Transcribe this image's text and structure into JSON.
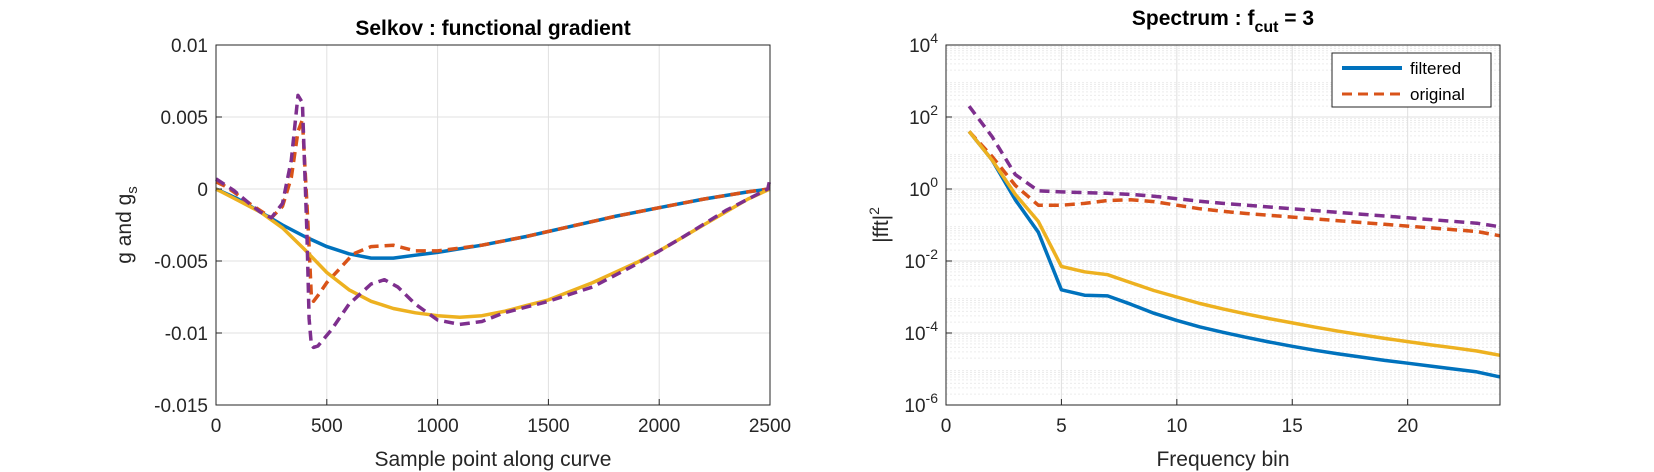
{
  "figure": {
    "colors": {
      "blue": "#0072BD",
      "orange": "#D95319",
      "yellow": "#EDB120",
      "purple": "#7E2F8E",
      "axis": "#262626",
      "grid": "#e0e0e0"
    }
  },
  "chart_data": [
    {
      "type": "line",
      "title": "Selkov : functional gradient",
      "xlabel": "Sample point along curve",
      "ylabel": "g and g",
      "ylabel_subscript": "s",
      "xlim": [
        0,
        2500
      ],
      "ylim": [
        -0.015,
        0.01
      ],
      "xticks": [
        0,
        500,
        1000,
        1500,
        2000,
        2500
      ],
      "xtick_labels": [
        "0",
        "500",
        "1000",
        "1500",
        "2000",
        "2500"
      ],
      "yticks": [
        0.01,
        0.005,
        0,
        -0.005,
        -0.01,
        -0.015
      ],
      "ytick_labels": [
        "0.01",
        "0.005",
        "0",
        "-0.005",
        "-0.01",
        "-0.015"
      ],
      "grid": true,
      "series": [
        {
          "color": "blue",
          "style": "solid",
          "x": [
            0,
            100,
            200,
            300,
            400,
            500,
            600,
            700,
            800,
            900,
            1000,
            1200,
            1400,
            1600,
            1800,
            2000,
            2200,
            2400,
            2500
          ],
          "y": [
            0,
            -0.0007,
            -0.0016,
            -0.0025,
            -0.0033,
            -0.004,
            -0.0045,
            -0.0048,
            -0.0048,
            -0.0046,
            -0.0044,
            -0.0039,
            -0.0033,
            -0.0026,
            -0.0019,
            -0.0013,
            -0.0007,
            -0.0002,
            0
          ]
        },
        {
          "color": "orange",
          "style": "dashed",
          "x": [
            0,
            40,
            80,
            150,
            200,
            250,
            300,
            340,
            370,
            390,
            410,
            420,
            430,
            440,
            460,
            500,
            560,
            620,
            700,
            800,
            900,
            1000,
            1200,
            1400,
            1600,
            1800,
            2000,
            2200,
            2400,
            2490,
            2500
          ],
          "y": [
            0.0005,
            0.0002,
            -0.0002,
            -0.001,
            -0.0015,
            -0.002,
            -0.0012,
            0.0008,
            0.004,
            0.0048,
            -0.001,
            -0.004,
            -0.0074,
            -0.0078,
            -0.0074,
            -0.0065,
            -0.0055,
            -0.0045,
            -0.004,
            -0.0039,
            -0.0043,
            -0.0043,
            -0.0039,
            -0.0033,
            -0.0026,
            -0.0019,
            -0.0013,
            -0.0007,
            -0.0002,
            0,
            0.0005
          ]
        },
        {
          "color": "yellow",
          "style": "solid",
          "x": [
            0,
            100,
            200,
            300,
            400,
            500,
            600,
            700,
            800,
            900,
            1000,
            1100,
            1200,
            1300,
            1400,
            1500,
            1600,
            1700,
            1800,
            1900,
            2000,
            2100,
            2200,
            2300,
            2400,
            2500
          ],
          "y": [
            0,
            -0.0008,
            -0.0016,
            -0.0027,
            -0.0042,
            -0.0058,
            -0.007,
            -0.0078,
            -0.0083,
            -0.0086,
            -0.0088,
            -0.0089,
            -0.0088,
            -0.0085,
            -0.0081,
            -0.0077,
            -0.0071,
            -0.0065,
            -0.0058,
            -0.0051,
            -0.0043,
            -0.0034,
            -0.0025,
            -0.0016,
            -0.0007,
            0
          ]
        },
        {
          "color": "purple",
          "style": "dashed",
          "x": [
            0,
            40,
            80,
            150,
            200,
            250,
            300,
            340,
            370,
            390,
            410,
            420,
            430,
            440,
            460,
            520,
            600,
            700,
            760,
            820,
            900,
            1000,
            1100,
            1200,
            1300,
            1400,
            1500,
            1700,
            1900,
            2100,
            2300,
            2490,
            2500
          ],
          "y": [
            0.0007,
            0.0003,
            -0.0001,
            -0.001,
            -0.0016,
            -0.002,
            -0.001,
            0.002,
            0.0065,
            0.006,
            -0.003,
            -0.009,
            -0.0108,
            -0.011,
            -0.0109,
            -0.0098,
            -0.008,
            -0.0066,
            -0.0063,
            -0.0068,
            -0.008,
            -0.0091,
            -0.0094,
            -0.0092,
            -0.0086,
            -0.0082,
            -0.0078,
            -0.0068,
            -0.0052,
            -0.0034,
            -0.0015,
            0,
            0.0007
          ]
        }
      ]
    },
    {
      "type": "line",
      "title": "Spectrum : f",
      "title_subscript": "cut",
      "title_suffix": " = 3",
      "xlabel": "Frequency bin",
      "ylabel": "|fft|",
      "ylabel_superscript": "2",
      "xlim": [
        0,
        24
      ],
      "ylim_log10": [
        -6,
        4
      ],
      "yscale": "log",
      "xticks": [
        0,
        5,
        10,
        15,
        20
      ],
      "xtick_labels": [
        "0",
        "5",
        "10",
        "15",
        "20"
      ],
      "yticks_log10": [
        4,
        2,
        0,
        -2,
        -4,
        -6
      ],
      "ytick_base": "10",
      "ytick_exponents": [
        "4",
        "2",
        "0",
        "-2",
        "-4",
        "-6"
      ],
      "grid": true,
      "legend": {
        "position": "top-right",
        "labels": [
          "filtered",
          "original"
        ]
      },
      "series": [
        {
          "name": "filtered",
          "color": "blue",
          "style": "solid",
          "x": [
            1,
            2,
            3,
            4,
            5,
            6,
            7,
            8,
            9,
            10,
            11,
            12,
            13,
            14,
            15,
            16,
            17,
            18,
            19,
            20,
            21,
            22,
            23,
            24
          ],
          "y_log10": [
            1.6,
            0.8,
            -0.3,
            -1.2,
            -2.8,
            -2.95,
            -2.97,
            -3.2,
            -3.45,
            -3.65,
            -3.83,
            -3.98,
            -4.12,
            -4.25,
            -4.37,
            -4.48,
            -4.58,
            -4.67,
            -4.76,
            -4.84,
            -4.92,
            -5.0,
            -5.08,
            -5.22
          ]
        },
        {
          "name": "original",
          "color": "orange",
          "style": "dashed",
          "x": [
            1,
            2,
            3,
            4,
            5,
            6,
            7,
            8,
            9,
            10,
            11,
            12,
            13,
            14,
            15,
            16,
            17,
            18,
            19,
            20,
            21,
            22,
            23,
            24
          ],
          "y_log10": [
            1.6,
            0.9,
            0.1,
            -0.45,
            -0.45,
            -0.4,
            -0.32,
            -0.3,
            -0.35,
            -0.45,
            -0.55,
            -0.62,
            -0.68,
            -0.73,
            -0.78,
            -0.83,
            -0.88,
            -0.93,
            -0.98,
            -1.03,
            -1.08,
            -1.13,
            -1.18,
            -1.3
          ]
        },
        {
          "color": "yellow",
          "style": "solid",
          "x": [
            1,
            2,
            3,
            4,
            5,
            6,
            7,
            8,
            9,
            10,
            11,
            12,
            13,
            14,
            15,
            16,
            17,
            18,
            19,
            20,
            21,
            22,
            23,
            24
          ],
          "y_log10": [
            1.6,
            0.8,
            -0.15,
            -0.9,
            -2.15,
            -2.3,
            -2.38,
            -2.6,
            -2.82,
            -3.0,
            -3.18,
            -3.33,
            -3.47,
            -3.6,
            -3.72,
            -3.84,
            -3.95,
            -4.05,
            -4.15,
            -4.24,
            -4.33,
            -4.41,
            -4.5,
            -4.62
          ]
        },
        {
          "color": "purple",
          "style": "dashed",
          "x": [
            1,
            2,
            3,
            4,
            5,
            6,
            7,
            8,
            9,
            10,
            11,
            12,
            13,
            14,
            15,
            16,
            17,
            18,
            19,
            20,
            21,
            22,
            23,
            24
          ],
          "y_log10": [
            2.3,
            1.45,
            0.4,
            -0.05,
            -0.08,
            -0.1,
            -0.12,
            -0.15,
            -0.2,
            -0.27,
            -0.34,
            -0.4,
            -0.45,
            -0.5,
            -0.55,
            -0.6,
            -0.65,
            -0.7,
            -0.75,
            -0.8,
            -0.85,
            -0.9,
            -0.95,
            -1.05
          ]
        }
      ]
    }
  ]
}
